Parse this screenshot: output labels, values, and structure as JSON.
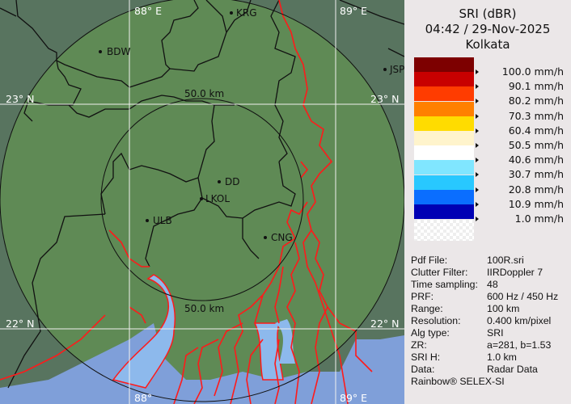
{
  "header": {
    "product": "SRI (dBR)",
    "timestamp": "04:42 / 29-Nov-2025",
    "site": "Kolkata"
  },
  "legend": [
    {
      "color": "#7d0000",
      "label": "100.0 mm/h"
    },
    {
      "color": "#c80000",
      "label": "90.1 mm/h"
    },
    {
      "color": "#ff3c00",
      "label": "80.2 mm/h"
    },
    {
      "color": "#ff8000",
      "label": "70.3 mm/h"
    },
    {
      "color": "#ffdc00",
      "label": "60.4 mm/h"
    },
    {
      "color": "#fff4cc",
      "label": "50.5 mm/h"
    },
    {
      "color": "#ffffff",
      "label": "40.6 mm/h"
    },
    {
      "color": "#80e6ff",
      "label": "30.7 mm/h"
    },
    {
      "color": "#28c8ff",
      "label": "20.8 mm/h"
    },
    {
      "color": "#0a6eff",
      "label": "10.9 mm/h"
    },
    {
      "color": "#0000b4",
      "label": "1.0 mm/h"
    }
  ],
  "info": [
    {
      "key": "Pdf File:",
      "value": "100R.sri"
    },
    {
      "key": "Clutter Filter:",
      "value": "IIRDoppler 7"
    },
    {
      "key": "Time sampling:",
      "value": "48"
    },
    {
      "key": "PRF:",
      "value": "600 Hz / 450 Hz"
    },
    {
      "key": "Range:",
      "value": "100 km"
    },
    {
      "key": "Resolution:",
      "value": "0.400 km/pixel"
    },
    {
      "key": "Alg type:",
      "value": "SRI"
    },
    {
      "key": "ZR:",
      "value": "a=281, b=1.53"
    },
    {
      "key": "SRI H:",
      "value": "1.0 km"
    },
    {
      "key": "Data:",
      "value": "Radar Data"
    }
  ],
  "footer": "Rainbow® SELEX-SI",
  "map": {
    "grid": {
      "lon_88_top": "88° E",
      "lon_89_top": "89° E",
      "lon_88_bottom": "88°",
      "lon_89_bottom": "89° E",
      "lat_23_left": "23° N",
      "lat_23_right": "23° N",
      "lat_22_left": "22° N",
      "lat_22_right": "22° N"
    },
    "rings": {
      "inner_top": "50.0 km",
      "inner_bottom": "50.0 km"
    },
    "cities": [
      "KRG",
      "BDW",
      "JSP",
      "DD",
      "LKOL",
      "ULB",
      "CNG"
    ],
    "colors": {
      "land_inside": "#5f8a55",
      "land_outside": "#58745f",
      "water": "#8db9ec",
      "sea": "#7f9fd9",
      "rivers": "#ff1a1a"
    }
  }
}
